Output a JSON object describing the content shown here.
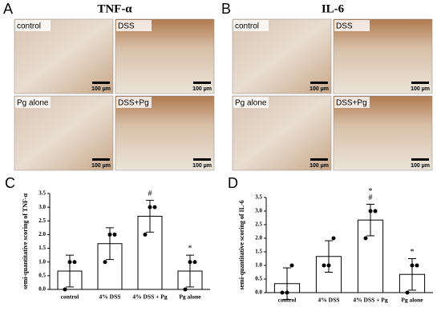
{
  "figure": {
    "panels": [
      {
        "letter": "A",
        "title": "TNF-α",
        "images": [
          {
            "label": "control",
            "scale": "100 µm"
          },
          {
            "label": "DSS",
            "scale": "100 µm"
          },
          {
            "label": "Pg alone",
            "scale": "100 µm"
          },
          {
            "label": "DSS+Pg",
            "scale": "100 µm"
          }
        ]
      },
      {
        "letter": "B",
        "title": "IL-6",
        "images": [
          {
            "label": "control",
            "scale": "100 µm"
          },
          {
            "label": "DSS",
            "scale": "100 µm"
          },
          {
            "label": "Pg alone",
            "scale": "100 µm"
          },
          {
            "label": "DSS+Pg",
            "scale": "100 µm"
          }
        ]
      }
    ]
  },
  "chart_data": [
    {
      "type": "bar",
      "panel_label": "C",
      "ylabel": "semi-quantitative scoring of TNF-α",
      "categories": [
        "control",
        "4% DSS",
        "4% DSS + Pg",
        "Pg alone"
      ],
      "values": [
        0.67,
        1.67,
        2.67,
        0.67
      ],
      "errors": [
        0.58,
        0.58,
        0.58,
        0.58
      ],
      "points": [
        [
          0,
          1,
          1
        ],
        [
          1,
          2,
          2
        ],
        [
          2,
          3,
          3
        ],
        [
          0,
          1,
          1
        ]
      ],
      "color": "#ffffff",
      "edgecolor": "#000000",
      "ylim": [
        0,
        3.5
      ],
      "yticks": [
        {
          "value": 0,
          "label": "0.0"
        },
        0.5,
        {
          "value": 1,
          "label": "1.0"
        },
        1.5,
        {
          "value": 2,
          "label": "2.0"
        },
        2.5,
        {
          "value": 3,
          "label": "3.0"
        },
        3.5
      ],
      "annotations": [
        {
          "text": "#",
          "x": "4% DSS + Pg"
        },
        {
          "text": "*",
          "x": "Pg alone"
        }
      ]
    },
    {
      "type": "bar",
      "panel_label": "D",
      "ylabel": "semi-quantitative scoring of IL-6",
      "categories": [
        "control",
        "4% DSS",
        "4% DSS + Pg",
        "Pg alone"
      ],
      "values": [
        0.33,
        1.33,
        2.67,
        0.67
      ],
      "errors": [
        0.58,
        0.58,
        0.58,
        0.58
      ],
      "points": [
        [
          0,
          0,
          1
        ],
        [
          1,
          1,
          2
        ],
        [
          2,
          3,
          3
        ],
        [
          0,
          1,
          1
        ]
      ],
      "color": "#ffffff",
      "edgecolor": "#000000",
      "ylim": [
        0,
        3.5
      ],
      "yticks": [
        {
          "value": 0,
          "label": "0.0"
        },
        0.5,
        {
          "value": 1,
          "label": "1.0"
        },
        1.5,
        {
          "value": 2,
          "label": "2.0"
        },
        2.5,
        {
          "value": 3,
          "label": "3.0"
        },
        3.5
      ],
      "annotations": [
        {
          "text": "#",
          "x": "4% DSS + Pg"
        },
        {
          "text": "*",
          "x": "4% DSS + Pg"
        },
        {
          "text": "*",
          "x": "Pg alone"
        }
      ]
    }
  ]
}
